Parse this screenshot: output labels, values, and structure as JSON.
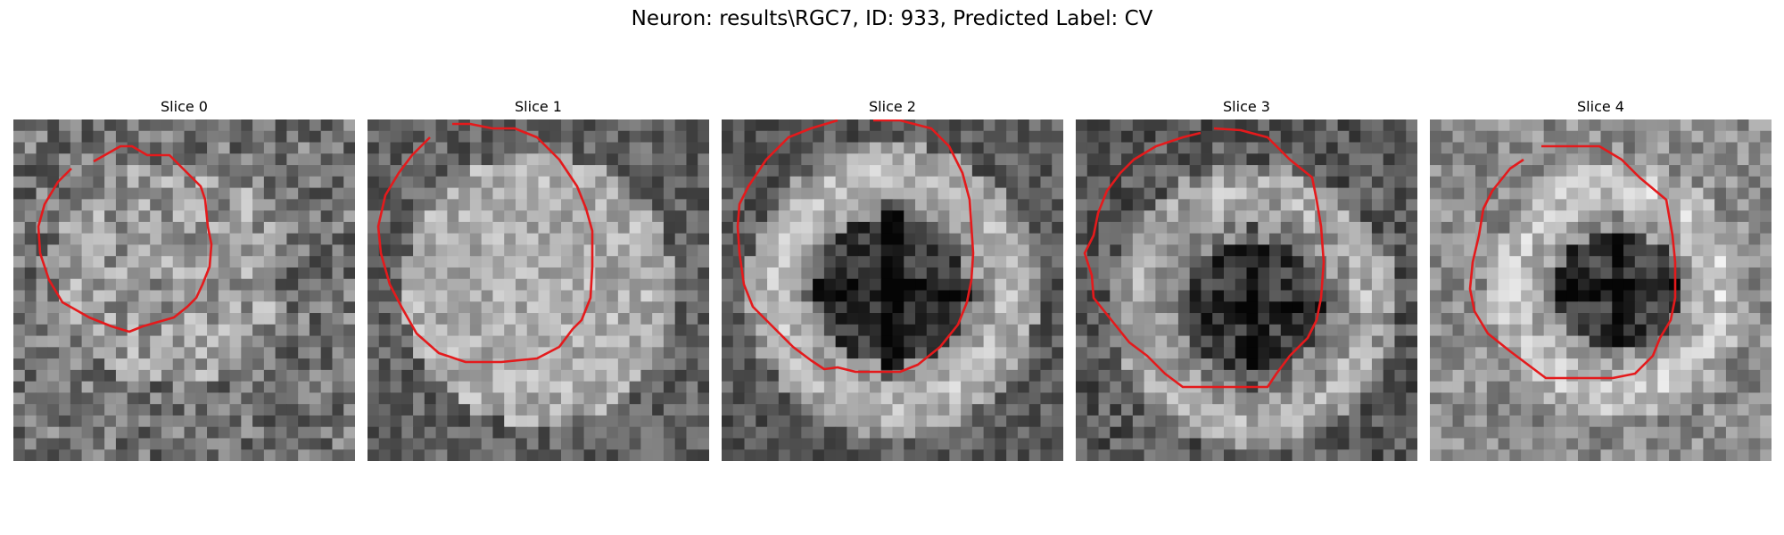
{
  "figure": {
    "title": "Neuron: results\\RGC7, ID: 933, Predicted Label: CV"
  },
  "panels": [
    {
      "title": "Slice 0"
    },
    {
      "title": "Slice 1"
    },
    {
      "title": "Slice 2"
    },
    {
      "title": "Slice 3"
    },
    {
      "title": "Slice 4"
    }
  ],
  "colors": {
    "contour": "#e41a1c",
    "background": "#ffffff"
  }
}
